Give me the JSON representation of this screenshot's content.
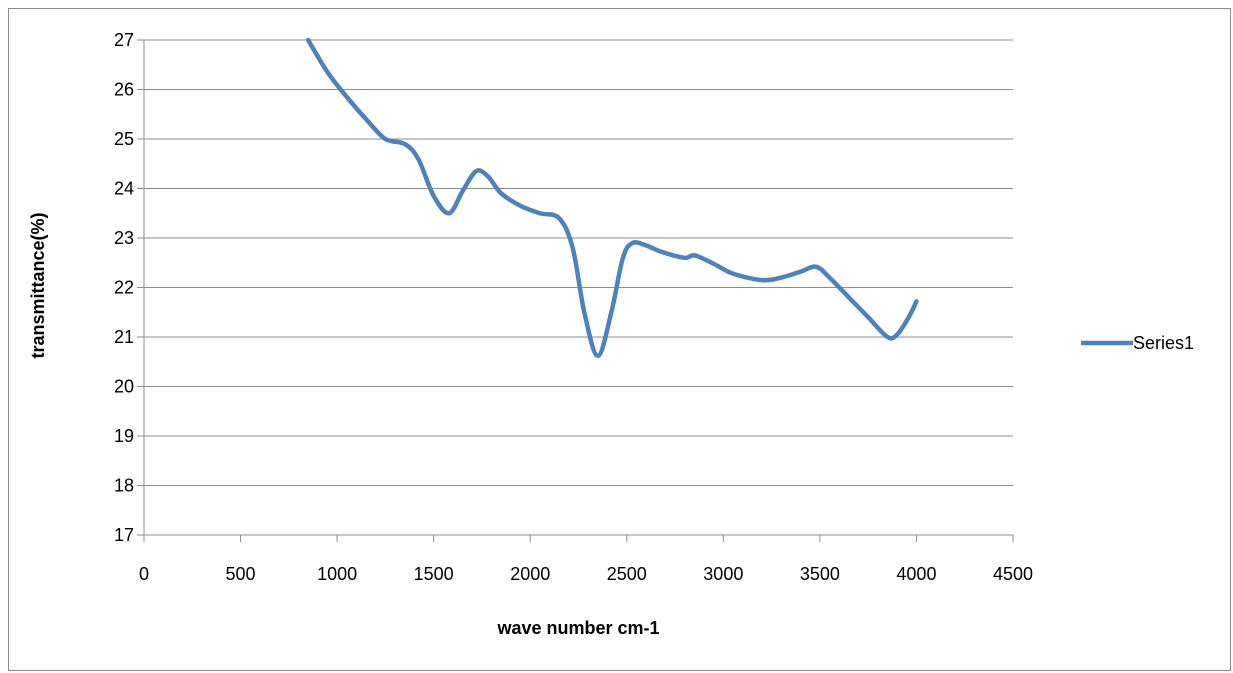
{
  "chart_data": {
    "type": "line",
    "title": "",
    "xlabel": "wave number cm-1",
    "ylabel": "transmittance(%)",
    "xlim": [
      0,
      4500
    ],
    "ylim": [
      17,
      27
    ],
    "x_ticks": [
      "0",
      "500",
      "1000",
      "1500",
      "2000",
      "2500",
      "3000",
      "3500",
      "4000",
      "4500"
    ],
    "y_ticks": [
      "17",
      "18",
      "19",
      "20",
      "21",
      "22",
      "23",
      "24",
      "25",
      "26",
      "27"
    ],
    "grid": "horizontal",
    "legend_position": "right",
    "line_color": "#4f81bd",
    "series": [
      {
        "name": "Series1",
        "x": [
          850,
          950,
          1050,
          1150,
          1250,
          1350,
          1420,
          1500,
          1580,
          1650,
          1720,
          1780,
          1850,
          1950,
          2050,
          2150,
          2220,
          2280,
          2350,
          2420,
          2480,
          2530,
          2600,
          2680,
          2800,
          2850,
          2950,
          3050,
          3200,
          3300,
          3400,
          3480,
          3550,
          3650,
          3750,
          3850,
          3900,
          3960,
          4000
        ],
        "values": [
          27.0,
          26.35,
          25.85,
          25.4,
          25.0,
          24.9,
          24.6,
          23.85,
          23.5,
          23.95,
          24.35,
          24.25,
          23.9,
          23.65,
          23.5,
          23.4,
          22.8,
          21.5,
          20.62,
          21.5,
          22.6,
          22.9,
          22.85,
          22.72,
          22.6,
          22.65,
          22.48,
          22.28,
          22.15,
          22.2,
          22.32,
          22.42,
          22.2,
          21.8,
          21.4,
          21.0,
          21.05,
          21.4,
          21.72
        ]
      }
    ]
  }
}
